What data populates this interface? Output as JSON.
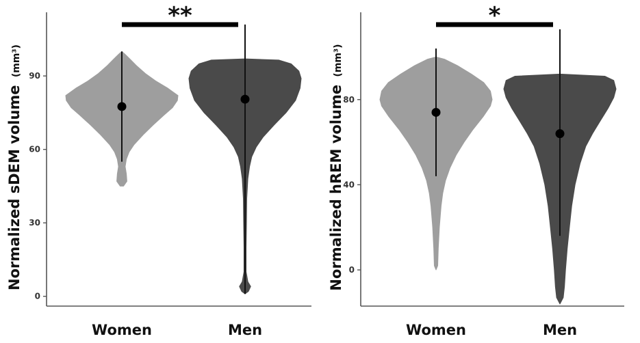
{
  "chart_data": [
    {
      "type": "violin",
      "ylabel": "Normalized sDEM volume",
      "ylabel_unit": "(mm³)",
      "yticks": [
        0,
        30,
        60,
        90
      ],
      "ylim": [
        -4,
        116
      ],
      "categories": [
        "Women",
        "Men"
      ],
      "significance": "**",
      "violins": [
        {
          "category": "Women",
          "color": "#9e9e9e",
          "min": 45,
          "max": 100,
          "profile": [
            [
              45,
              0.03
            ],
            [
              47,
              0.09
            ],
            [
              50,
              0.08
            ],
            [
              53,
              0.06
            ],
            [
              56,
              0.08
            ],
            [
              59,
              0.13
            ],
            [
              62,
              0.22
            ],
            [
              66,
              0.38
            ],
            [
              70,
              0.56
            ],
            [
              74,
              0.75
            ],
            [
              77,
              0.9
            ],
            [
              80,
              0.99
            ],
            [
              82,
              1.0
            ],
            [
              85,
              0.82
            ],
            [
              88,
              0.6
            ],
            [
              91,
              0.42
            ],
            [
              94,
              0.27
            ],
            [
              97,
              0.14
            ],
            [
              99,
              0.05
            ],
            [
              100,
              0.0
            ]
          ],
          "mean": 77.5,
          "whisker": [
            55,
            100
          ]
        },
        {
          "category": "Men",
          "color": "#4a4a4a",
          "min": 1,
          "max": 97,
          "profile": [
            [
              1,
              0.0
            ],
            [
              2,
              0.06
            ],
            [
              4,
              0.1
            ],
            [
              6,
              0.05
            ],
            [
              10,
              0.02
            ],
            [
              20,
              0.02
            ],
            [
              30,
              0.025
            ],
            [
              40,
              0.03
            ],
            [
              48,
              0.05
            ],
            [
              53,
              0.08
            ],
            [
              57,
              0.12
            ],
            [
              61,
              0.2
            ],
            [
              65,
              0.32
            ],
            [
              70,
              0.52
            ],
            [
              75,
              0.73
            ],
            [
              80,
              0.9
            ],
            [
              85,
              0.98
            ],
            [
              89,
              1.0
            ],
            [
              92,
              0.96
            ],
            [
              95,
              0.82
            ],
            [
              96.5,
              0.6
            ],
            [
              97,
              0.0
            ]
          ],
          "mean": 80.5,
          "whisker": [
            1,
            111
          ]
        }
      ]
    },
    {
      "type": "violin",
      "ylabel": "Normalized hREM volume",
      "ylabel_unit": "(mm³)",
      "yticks": [
        0,
        40,
        80
      ],
      "ylim": [
        -17,
        121
      ],
      "categories": [
        "Women",
        "Men"
      ],
      "significance": "*",
      "violins": [
        {
          "category": "Women",
          "color": "#9e9e9e",
          "min": 0,
          "max": 100,
          "profile": [
            [
              0,
              0.0
            ],
            [
              2,
              0.03
            ],
            [
              10,
              0.04
            ],
            [
              20,
              0.06
            ],
            [
              30,
              0.09
            ],
            [
              36,
              0.12
            ],
            [
              42,
              0.17
            ],
            [
              48,
              0.25
            ],
            [
              54,
              0.36
            ],
            [
              60,
              0.5
            ],
            [
              66,
              0.66
            ],
            [
              72,
              0.84
            ],
            [
              77,
              0.97
            ],
            [
              80,
              1.0
            ],
            [
              84,
              0.97
            ],
            [
              88,
              0.85
            ],
            [
              92,
              0.63
            ],
            [
              96,
              0.38
            ],
            [
              99,
              0.15
            ],
            [
              100,
              0.0
            ]
          ],
          "mean": 74,
          "whisker": [
            44,
            104
          ]
        },
        {
          "category": "Men",
          "color": "#4a4a4a",
          "min": -16,
          "max": 92,
          "profile": [
            [
              -16,
              0.0
            ],
            [
              -13,
              0.06
            ],
            [
              -8,
              0.08
            ],
            [
              0,
              0.1
            ],
            [
              10,
              0.13
            ],
            [
              20,
              0.17
            ],
            [
              30,
              0.21
            ],
            [
              40,
              0.27
            ],
            [
              50,
              0.36
            ],
            [
              58,
              0.46
            ],
            [
              64,
              0.58
            ],
            [
              70,
              0.72
            ],
            [
              76,
              0.86
            ],
            [
              81,
              0.96
            ],
            [
              85,
              1.0
            ],
            [
              89,
              0.96
            ],
            [
              91,
              0.8
            ],
            [
              92,
              0.0
            ]
          ],
          "mean": 64,
          "whisker": [
            16,
            113
          ]
        }
      ]
    }
  ]
}
